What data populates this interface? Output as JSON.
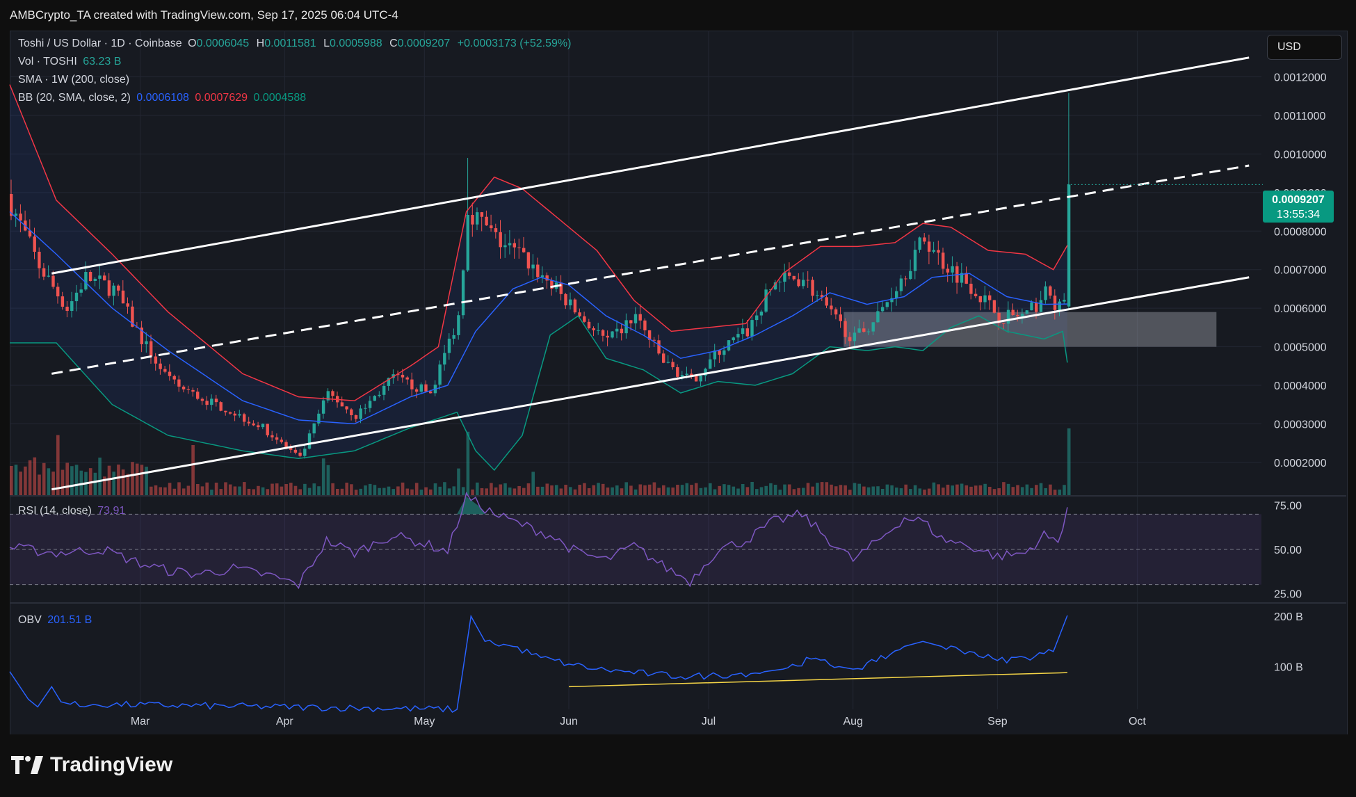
{
  "header": {
    "caption": "AMBCrypto_TA created with TradingView.com, Sep 17, 2025 06:04 UTC-4"
  },
  "symbol": {
    "name": "Toshi / US Dollar · 1D · Coinbase",
    "open_label": "O",
    "open": "0.0006045",
    "high_label": "H",
    "high": "0.0011581",
    "low_label": "L",
    "low": "0.0005988",
    "close_label": "C",
    "close": "0.0009207",
    "change": "+0.0003173 (+52.59%)"
  },
  "indicators": {
    "vol_label": "Vol · TOSHI",
    "vol_value": "63.23 B",
    "sma_label": "SMA · 1W (200, close)",
    "bb_label": "BB (20, SMA, close, 2)",
    "bb_basis": "0.0006108",
    "bb_upper": "0.0007629",
    "bb_lower": "0.0004588",
    "rsi_label": "RSI (14, close)",
    "rsi_value": "73.91",
    "obv_label": "OBV",
    "obv_value": "201.51 B"
  },
  "currency_button": "USD",
  "last_price": {
    "value": "0.0009207",
    "countdown": "13:55:34"
  },
  "colors": {
    "up": "#26a69a",
    "down": "#ef5350",
    "bb_basis": "#2962ff",
    "bb_upper": "#f23645",
    "bb_lower": "#089981",
    "rsi": "#7e57c2",
    "obv": "#2962ff",
    "obv_trend": "#f5d547",
    "channel": "#ffffff"
  },
  "brand": {
    "name": "TradingView"
  },
  "chart_data": [
    {
      "type": "line",
      "panel": "price",
      "price_axis": [
        "0.0012000",
        "0.0011000",
        "0.0010000",
        "0.0009000",
        "0.0008000",
        "0.0007000",
        "0.0006000",
        "0.0005000",
        "0.0004000",
        "0.0003000",
        "0.0002000"
      ],
      "ylim": [
        0.000115,
        0.00132
      ],
      "x_tick_labels": [
        {
          "label": "Mar",
          "day": 28
        },
        {
          "label": "Apr",
          "day": 59
        },
        {
          "label": "May",
          "day": 89
        },
        {
          "label": "Jun",
          "day": 120
        },
        {
          "label": "Jul",
          "day": 150
        },
        {
          "label": "Aug",
          "day": 181
        },
        {
          "label": "Sep",
          "day": 212
        },
        {
          "label": "Oct",
          "day": 242
        }
      ],
      "x_range_days": [
        0,
        266
      ],
      "last_candle_day": 227,
      "close_anchors": [
        [
          0,
          0.00087
        ],
        [
          6,
          0.00071
        ],
        [
          12,
          0.0006
        ],
        [
          16,
          0.00068
        ],
        [
          22,
          0.00065
        ],
        [
          28,
          0.00052
        ],
        [
          34,
          0.00041
        ],
        [
          40,
          0.00037
        ],
        [
          46,
          0.00034
        ],
        [
          54,
          0.00029
        ],
        [
          62,
          0.00021
        ],
        [
          68,
          0.00038
        ],
        [
          74,
          0.00032
        ],
        [
          82,
          0.00042
        ],
        [
          90,
          0.00038
        ],
        [
          96,
          0.00058
        ],
        [
          98,
          0.00086
        ],
        [
          104,
          0.00078
        ],
        [
          110,
          0.00073
        ],
        [
          116,
          0.00066
        ],
        [
          122,
          0.00058
        ],
        [
          128,
          0.00051
        ],
        [
          134,
          0.00058
        ],
        [
          140,
          0.00046
        ],
        [
          146,
          0.00041
        ],
        [
          152,
          0.00049
        ],
        [
          158,
          0.00054
        ],
        [
          164,
          0.00067
        ],
        [
          170,
          0.00068
        ],
        [
          176,
          0.00058
        ],
        [
          181,
          0.00052
        ],
        [
          186,
          0.00058
        ],
        [
          192,
          0.0007
        ],
        [
          196,
          0.00078
        ],
        [
          200,
          0.00072
        ],
        [
          206,
          0.00066
        ],
        [
          212,
          0.00058
        ],
        [
          218,
          0.00058
        ],
        [
          222,
          0.00064
        ],
        [
          225,
          0.0006
        ],
        [
          226,
          0.000605
        ],
        [
          227,
          0.0009207
        ]
      ],
      "bb_upper_anchors": [
        [
          0,
          0.00118
        ],
        [
          10,
          0.00088
        ],
        [
          22,
          0.00074
        ],
        [
          34,
          0.00059
        ],
        [
          50,
          0.00043
        ],
        [
          62,
          0.00037
        ],
        [
          74,
          0.00036
        ],
        [
          86,
          0.00045
        ],
        [
          92,
          0.0005
        ],
        [
          98,
          0.00085
        ],
        [
          104,
          0.00094
        ],
        [
          110,
          0.00091
        ],
        [
          118,
          0.00083
        ],
        [
          126,
          0.00075
        ],
        [
          134,
          0.00062
        ],
        [
          142,
          0.00054
        ],
        [
          150,
          0.00055
        ],
        [
          158,
          0.00056
        ],
        [
          166,
          0.00069
        ],
        [
          174,
          0.00076
        ],
        [
          182,
          0.00076
        ],
        [
          190,
          0.00077
        ],
        [
          196,
          0.00082
        ],
        [
          202,
          0.00081
        ],
        [
          210,
          0.00075
        ],
        [
          218,
          0.00074
        ],
        [
          224,
          0.0007
        ],
        [
          227,
          0.0007629
        ]
      ],
      "bb_basis_anchors": [
        [
          0,
          0.00085
        ],
        [
          10,
          0.00074
        ],
        [
          22,
          0.0006
        ],
        [
          34,
          0.00049
        ],
        [
          50,
          0.00036
        ],
        [
          62,
          0.00031
        ],
        [
          74,
          0.0003
        ],
        [
          86,
          0.00037
        ],
        [
          94,
          0.0004
        ],
        [
          100,
          0.00054
        ],
        [
          108,
          0.00065
        ],
        [
          114,
          0.00068
        ],
        [
          120,
          0.00066
        ],
        [
          128,
          0.00058
        ],
        [
          136,
          0.00053
        ],
        [
          144,
          0.00047
        ],
        [
          152,
          0.00049
        ],
        [
          160,
          0.00053
        ],
        [
          168,
          0.00058
        ],
        [
          176,
          0.00064
        ],
        [
          184,
          0.00061
        ],
        [
          192,
          0.00063
        ],
        [
          198,
          0.00068
        ],
        [
          206,
          0.00069
        ],
        [
          214,
          0.00063
        ],
        [
          222,
          0.00061
        ],
        [
          227,
          0.0006108
        ]
      ],
      "bb_lower_anchors": [
        [
          0,
          0.00051
        ],
        [
          10,
          0.00051
        ],
        [
          22,
          0.00035
        ],
        [
          34,
          0.00027
        ],
        [
          50,
          0.00023
        ],
        [
          62,
          0.00021
        ],
        [
          74,
          0.00023
        ],
        [
          86,
          0.00029
        ],
        [
          96,
          0.00033
        ],
        [
          100,
          0.00023
        ],
        [
          104,
          0.00018
        ],
        [
          110,
          0.00027
        ],
        [
          116,
          0.00053
        ],
        [
          122,
          0.00058
        ],
        [
          128,
          0.00047
        ],
        [
          136,
          0.00044
        ],
        [
          144,
          0.00038
        ],
        [
          152,
          0.00041
        ],
        [
          160,
          0.0004
        ],
        [
          168,
          0.00043
        ],
        [
          176,
          0.0005
        ],
        [
          184,
          0.00049
        ],
        [
          190,
          0.0005
        ],
        [
          196,
          0.00049
        ],
        [
          202,
          0.00055
        ],
        [
          208,
          0.00058
        ],
        [
          214,
          0.00054
        ],
        [
          222,
          0.00052
        ],
        [
          226,
          0.00054
        ],
        [
          227,
          0.0004588
        ]
      ],
      "channel": {
        "upper": [
          [
            9,
            0.00069
          ],
          [
            266,
            0.00125
          ]
        ],
        "middle": [
          [
            9,
            0.00043
          ],
          [
            266,
            0.00097
          ]
        ],
        "lower": [
          [
            9,
            0.00013
          ],
          [
            266,
            0.00068
          ]
        ]
      },
      "support_zone": {
        "day_start": 179,
        "day_end": 259,
        "price_low": 0.0005,
        "price_high": 0.00059
      }
    },
    {
      "type": "bar",
      "panel": "volume",
      "description": "daily volume bars colored by candle direction",
      "spikes": [
        [
          10,
          0.9
        ],
        [
          39,
          0.75
        ],
        [
          67,
          0.55
        ],
        [
          68,
          0.45
        ],
        [
          96,
          0.4
        ],
        [
          98,
          0.95
        ],
        [
          112,
          0.35
        ],
        [
          227,
          1.0
        ]
      ]
    },
    {
      "type": "line",
      "panel": "rsi",
      "axis_labels": [
        "75.00",
        "50.00",
        "25.00"
      ],
      "ylim": [
        20,
        80
      ],
      "band": [
        30,
        70
      ],
      "anchors": [
        [
          0,
          51
        ],
        [
          10,
          48
        ],
        [
          20,
          50
        ],
        [
          28,
          42
        ],
        [
          34,
          38
        ],
        [
          40,
          36
        ],
        [
          48,
          39
        ],
        [
          56,
          35
        ],
        [
          62,
          30
        ],
        [
          68,
          55
        ],
        [
          74,
          48
        ],
        [
          82,
          58
        ],
        [
          88,
          54
        ],
        [
          94,
          49
        ],
        [
          98,
          80
        ],
        [
          104,
          70
        ],
        [
          110,
          64
        ],
        [
          116,
          58
        ],
        [
          122,
          48
        ],
        [
          128,
          44
        ],
        [
          134,
          52
        ],
        [
          140,
          41
        ],
        [
          146,
          32
        ],
        [
          152,
          50
        ],
        [
          158,
          55
        ],
        [
          164,
          66
        ],
        [
          170,
          70
        ],
        [
          176,
          55
        ],
        [
          181,
          44
        ],
        [
          186,
          54
        ],
        [
          192,
          68
        ],
        [
          196,
          66
        ],
        [
          200,
          56
        ],
        [
          206,
          52
        ],
        [
          212,
          46
        ],
        [
          218,
          48
        ],
        [
          222,
          58
        ],
        [
          225,
          54
        ],
        [
          227,
          73.91
        ]
      ]
    },
    {
      "type": "line",
      "panel": "obv",
      "axis_labels": [
        "200 B",
        "100 B"
      ],
      "ylim": [
        15,
        225
      ],
      "anchors": [
        [
          0,
          90
        ],
        [
          4,
          35
        ],
        [
          6,
          20
        ],
        [
          9,
          60
        ],
        [
          11,
          30
        ],
        [
          16,
          20
        ],
        [
          18,
          25
        ],
        [
          96,
          15
        ],
        [
          99,
          200
        ],
        [
          102,
          150
        ],
        [
          108,
          140
        ],
        [
          114,
          118
        ],
        [
          120,
          105
        ],
        [
          126,
          95
        ],
        [
          132,
          90
        ],
        [
          138,
          85
        ],
        [
          144,
          80
        ],
        [
          150,
          82
        ],
        [
          156,
          85
        ],
        [
          162,
          90
        ],
        [
          166,
          95
        ],
        [
          172,
          115
        ],
        [
          178,
          100
        ],
        [
          181,
          95
        ],
        [
          186,
          110
        ],
        [
          192,
          140
        ],
        [
          196,
          150
        ],
        [
          200,
          140
        ],
        [
          206,
          130
        ],
        [
          212,
          112
        ],
        [
          218,
          118
        ],
        [
          224,
          130
        ],
        [
          227,
          201.51
        ]
      ],
      "trendline": [
        [
          120,
          60
        ],
        [
          227,
          88
        ]
      ]
    }
  ]
}
